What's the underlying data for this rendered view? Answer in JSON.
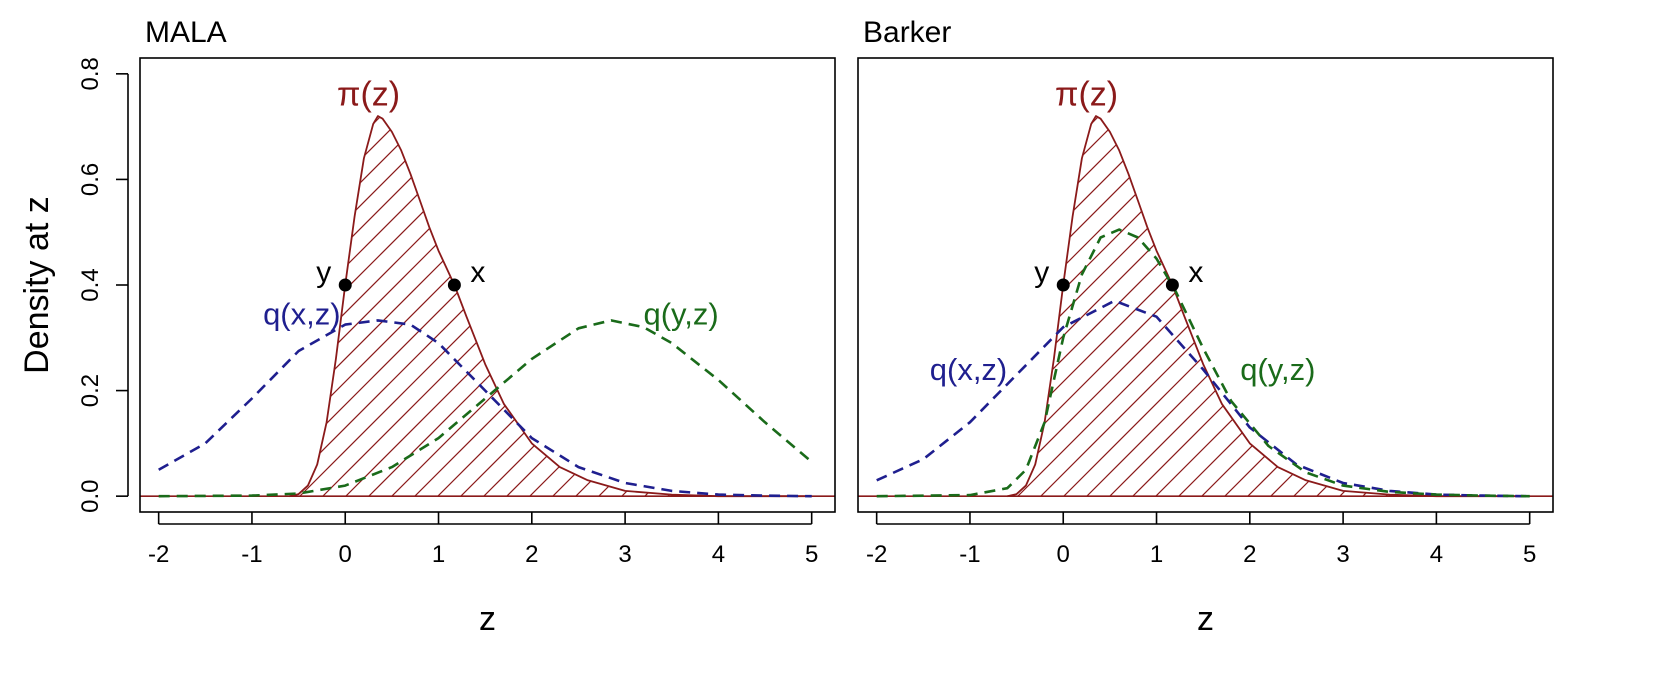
{
  "figure": {
    "ylabel": "Density at z",
    "xlabel": "z",
    "xlim": [
      -2.2,
      5.25
    ],
    "ylim": [
      -0.03,
      0.83
    ],
    "xticks": [
      -2,
      -1,
      0,
      1,
      2,
      3,
      4,
      5
    ],
    "yticks": [
      0.0,
      0.2,
      0.4,
      0.6,
      0.8
    ],
    "ytick_labels": [
      "0.0",
      "0.2",
      "0.4",
      "0.6",
      "0.8"
    ],
    "colors": {
      "target": "#8b1a1a",
      "q_x": "#1f1f8f",
      "q_y": "#1a6b1a",
      "point": "#000000",
      "axis": "#000000"
    }
  },
  "chart_data": [
    {
      "type": "line",
      "title": "MALA",
      "xlabel": "z",
      "ylabel": "Density at z",
      "xlim": [
        -2.2,
        5.25
      ],
      "ylim": [
        -0.03,
        0.83
      ],
      "grid": false,
      "series": [
        {
          "label": "π(z)",
          "style": "solid",
          "color": "#8b1a1a",
          "hatched": true,
          "x": [
            -0.6,
            -0.5,
            -0.4,
            -0.3,
            -0.2,
            -0.1,
            0.0,
            0.1,
            0.2,
            0.3,
            0.35,
            0.4,
            0.5,
            0.6,
            0.7,
            0.8,
            0.9,
            1.0,
            1.17,
            1.3,
            1.5,
            1.7,
            2.0,
            2.3,
            2.6,
            3.0,
            3.5,
            4.0,
            5.0
          ],
          "y": [
            0.0,
            0.004,
            0.02,
            0.06,
            0.14,
            0.26,
            0.4,
            0.53,
            0.64,
            0.705,
            0.72,
            0.715,
            0.69,
            0.655,
            0.61,
            0.56,
            0.51,
            0.465,
            0.4,
            0.34,
            0.25,
            0.175,
            0.1,
            0.055,
            0.03,
            0.01,
            0.003,
            0.0,
            0.0
          ]
        },
        {
          "label": "q(x,z)",
          "style": "dashed",
          "color": "#1f1f8f",
          "x": [
            -2.0,
            -1.5,
            -1.0,
            -0.5,
            0.0,
            0.35,
            0.7,
            1.0,
            1.5,
            2.0,
            2.5,
            3.0,
            3.5,
            4.0,
            4.5,
            5.0
          ],
          "y": [
            0.05,
            0.1,
            0.185,
            0.275,
            0.325,
            0.333,
            0.325,
            0.29,
            0.2,
            0.11,
            0.055,
            0.025,
            0.01,
            0.003,
            0.001,
            0.0
          ]
        },
        {
          "label": "q(y,z)",
          "style": "dashed",
          "color": "#1a6b1a",
          "x": [
            -2.0,
            -1.0,
            -0.5,
            0.0,
            0.5,
            1.0,
            1.5,
            2.0,
            2.5,
            2.85,
            3.2,
            3.5,
            4.0,
            4.5,
            5.0
          ],
          "y": [
            0.0,
            0.001,
            0.005,
            0.02,
            0.055,
            0.11,
            0.185,
            0.26,
            0.318,
            0.333,
            0.32,
            0.29,
            0.22,
            0.14,
            0.065
          ]
        }
      ],
      "points": [
        {
          "label": "y",
          "x": 0.0,
          "y": 0.4
        },
        {
          "label": "x",
          "x": 1.17,
          "y": 0.4
        }
      ]
    },
    {
      "type": "line",
      "title": "Barker",
      "xlabel": "z",
      "ylabel": "",
      "xlim": [
        -2.2,
        5.25
      ],
      "ylim": [
        -0.03,
        0.83
      ],
      "grid": false,
      "series": [
        {
          "label": "π(z)",
          "style": "solid",
          "color": "#8b1a1a",
          "hatched": true,
          "x": [
            -0.6,
            -0.5,
            -0.4,
            -0.3,
            -0.2,
            -0.1,
            0.0,
            0.1,
            0.2,
            0.3,
            0.35,
            0.4,
            0.5,
            0.6,
            0.7,
            0.8,
            0.9,
            1.0,
            1.17,
            1.3,
            1.5,
            1.7,
            2.0,
            2.3,
            2.6,
            3.0,
            3.5,
            4.0,
            5.0
          ],
          "y": [
            0.0,
            0.004,
            0.02,
            0.06,
            0.14,
            0.26,
            0.4,
            0.53,
            0.64,
            0.705,
            0.72,
            0.715,
            0.69,
            0.655,
            0.61,
            0.56,
            0.51,
            0.465,
            0.4,
            0.34,
            0.25,
            0.175,
            0.1,
            0.055,
            0.03,
            0.01,
            0.003,
            0.0,
            0.0
          ]
        },
        {
          "label": "q(x,z)",
          "style": "dashed",
          "color": "#1f1f8f",
          "x": [
            -2.0,
            -1.5,
            -1.0,
            -0.5,
            0.0,
            0.55,
            1.0,
            1.5,
            2.0,
            2.5,
            3.0,
            3.5,
            4.0,
            4.5,
            5.0
          ],
          "y": [
            0.03,
            0.07,
            0.14,
            0.23,
            0.32,
            0.37,
            0.34,
            0.24,
            0.13,
            0.06,
            0.025,
            0.01,
            0.003,
            0.001,
            0.0
          ]
        },
        {
          "label": "q(y,z)",
          "style": "dashed",
          "color": "#1a6b1a",
          "x": [
            -2.0,
            -1.0,
            -0.6,
            -0.4,
            -0.2,
            0.0,
            0.2,
            0.4,
            0.6,
            0.8,
            1.0,
            1.2,
            1.5,
            1.8,
            2.2,
            2.6,
            3.0,
            3.5,
            4.0,
            4.5,
            5.0
          ],
          "y": [
            0.0,
            0.002,
            0.015,
            0.05,
            0.14,
            0.3,
            0.42,
            0.49,
            0.505,
            0.49,
            0.45,
            0.39,
            0.28,
            0.18,
            0.095,
            0.045,
            0.02,
            0.008,
            0.003,
            0.001,
            0.0
          ]
        }
      ],
      "points": [
        {
          "label": "y",
          "x": 0.0,
          "y": 0.4
        },
        {
          "label": "x",
          "x": 1.17,
          "y": 0.4
        }
      ]
    }
  ]
}
